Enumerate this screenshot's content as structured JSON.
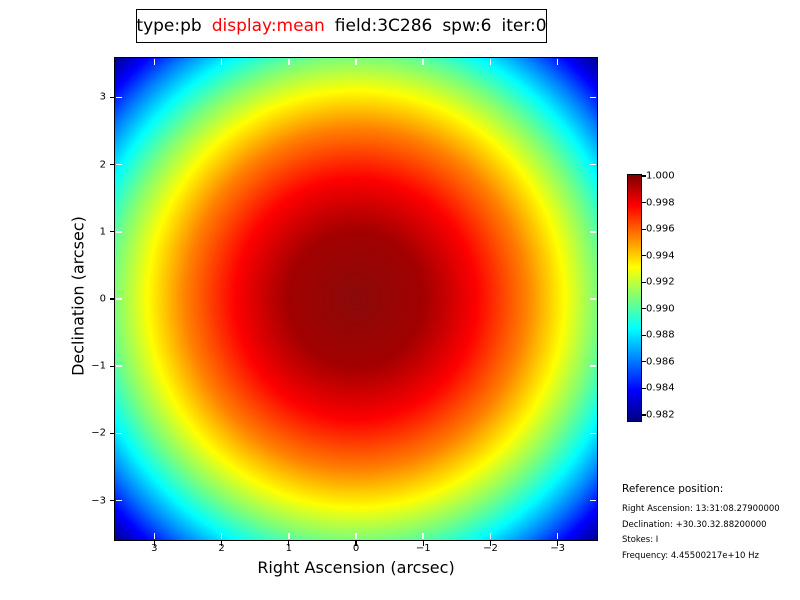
{
  "figure": {
    "background_color": "#ffffff",
    "title_segments": [
      {
        "text": "type:pb",
        "color": "#000000"
      },
      {
        "text": "display:mean",
        "color": "#ff0000"
      },
      {
        "text": "field:3C286",
        "color": "#000000"
      },
      {
        "text": "spw:6",
        "color": "#000000"
      },
      {
        "text": "iter:0",
        "color": "#000000"
      }
    ]
  },
  "chart_data": {
    "type": "heatmap",
    "title": "type:pb display:mean field:3C286 spw:6 iter:0",
    "xlabel": "Right Ascension (arcsec)",
    "ylabel": "Declination (arcsec)",
    "x_tick_labels": [
      "3",
      "2",
      "1",
      "0",
      "−1",
      "−2",
      "−3"
    ],
    "y_tick_labels": [
      "3",
      "2",
      "1",
      "0",
      "−1",
      "−2",
      "−3"
    ],
    "x_axis_range_left_to_right": [
      3.6,
      -3.6
    ],
    "y_axis_range_bottom_to_top": [
      -3.6,
      3.6
    ],
    "grid": false,
    "colormap": "jet",
    "colormap_stops_low_to_high": [
      "#000080",
      "#0000ff",
      "#0080ff",
      "#00ffff",
      "#7cff79",
      "#ffff00",
      "#ff8000",
      "#ff0000",
      "#7f0000"
    ],
    "image_pattern": "radially symmetric primary-beam response, peak 1.000 at center (0,0) arcsec, falling to about 0.982 at the field corners",
    "tick_color_inside": "#ffffff",
    "tick_color_outside": "#000000",
    "colorbar": {
      "tick_labels": [
        "1.000",
        "0.998",
        "0.996",
        "0.994",
        "0.992",
        "0.990",
        "0.988",
        "0.986",
        "0.984",
        "0.982"
      ],
      "vmax_label": "1.000",
      "vmin_label": "0.982",
      "orientation": "vertical",
      "position": "right"
    }
  },
  "reference": {
    "heading": "Reference position:",
    "lines": [
      "Right Ascension: 13:31:08.27900000",
      "Declination: +30.30.32.88200000",
      "Stokes: I",
      "Frequency: 4.45500217e+10 Hz"
    ]
  }
}
